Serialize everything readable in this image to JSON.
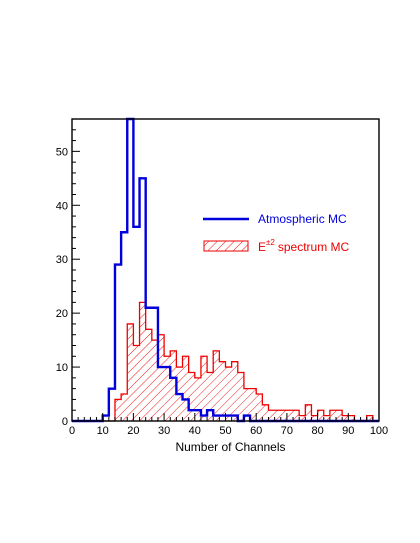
{
  "chart_data": {
    "type": "histogram",
    "title": "",
    "xlabel": "Number of Channels",
    "ylabel": "",
    "xlim": [
      0,
      100
    ],
    "ylim": [
      0,
      56
    ],
    "bin_width": 2,
    "x_ticks": [
      0,
      10,
      20,
      30,
      40,
      50,
      60,
      70,
      80,
      90,
      100
    ],
    "y_ticks": [
      0,
      10,
      20,
      30,
      40,
      50
    ],
    "grid": false,
    "legend_position": "right-middle",
    "series": [
      {
        "name": "Atmospheric MC",
        "color": "#0000dd",
        "style": "step-line",
        "bin_edges_start": 0,
        "values": [
          0,
          0,
          0,
          0,
          0,
          1,
          6,
          29,
          35,
          56,
          36,
          45,
          21,
          21,
          10,
          10,
          8,
          5,
          4,
          2,
          2,
          1,
          2,
          1,
          1,
          1,
          1,
          0,
          1,
          0,
          0,
          0,
          0,
          0,
          0,
          0,
          0,
          0,
          0,
          0,
          0,
          0,
          0,
          0,
          0,
          0,
          0,
          0,
          0,
          0
        ]
      },
      {
        "name_prefix": "E",
        "name_superscript": "±2",
        "name_suffix": "spectrum MC",
        "color": "#ee0000",
        "style": "hatched",
        "bin_edges_start": 0,
        "values": [
          0,
          0,
          0,
          0,
          0,
          0,
          0,
          4,
          5,
          18,
          14,
          22,
          17,
          15,
          16,
          12,
          13,
          10,
          12,
          9,
          8,
          12,
          9,
          13,
          11,
          10,
          11,
          9,
          6,
          6,
          5,
          3,
          2,
          2,
          2,
          2,
          2,
          1,
          3,
          1,
          2,
          1,
          2,
          2,
          1,
          1,
          0,
          0,
          1,
          0
        ]
      }
    ]
  }
}
